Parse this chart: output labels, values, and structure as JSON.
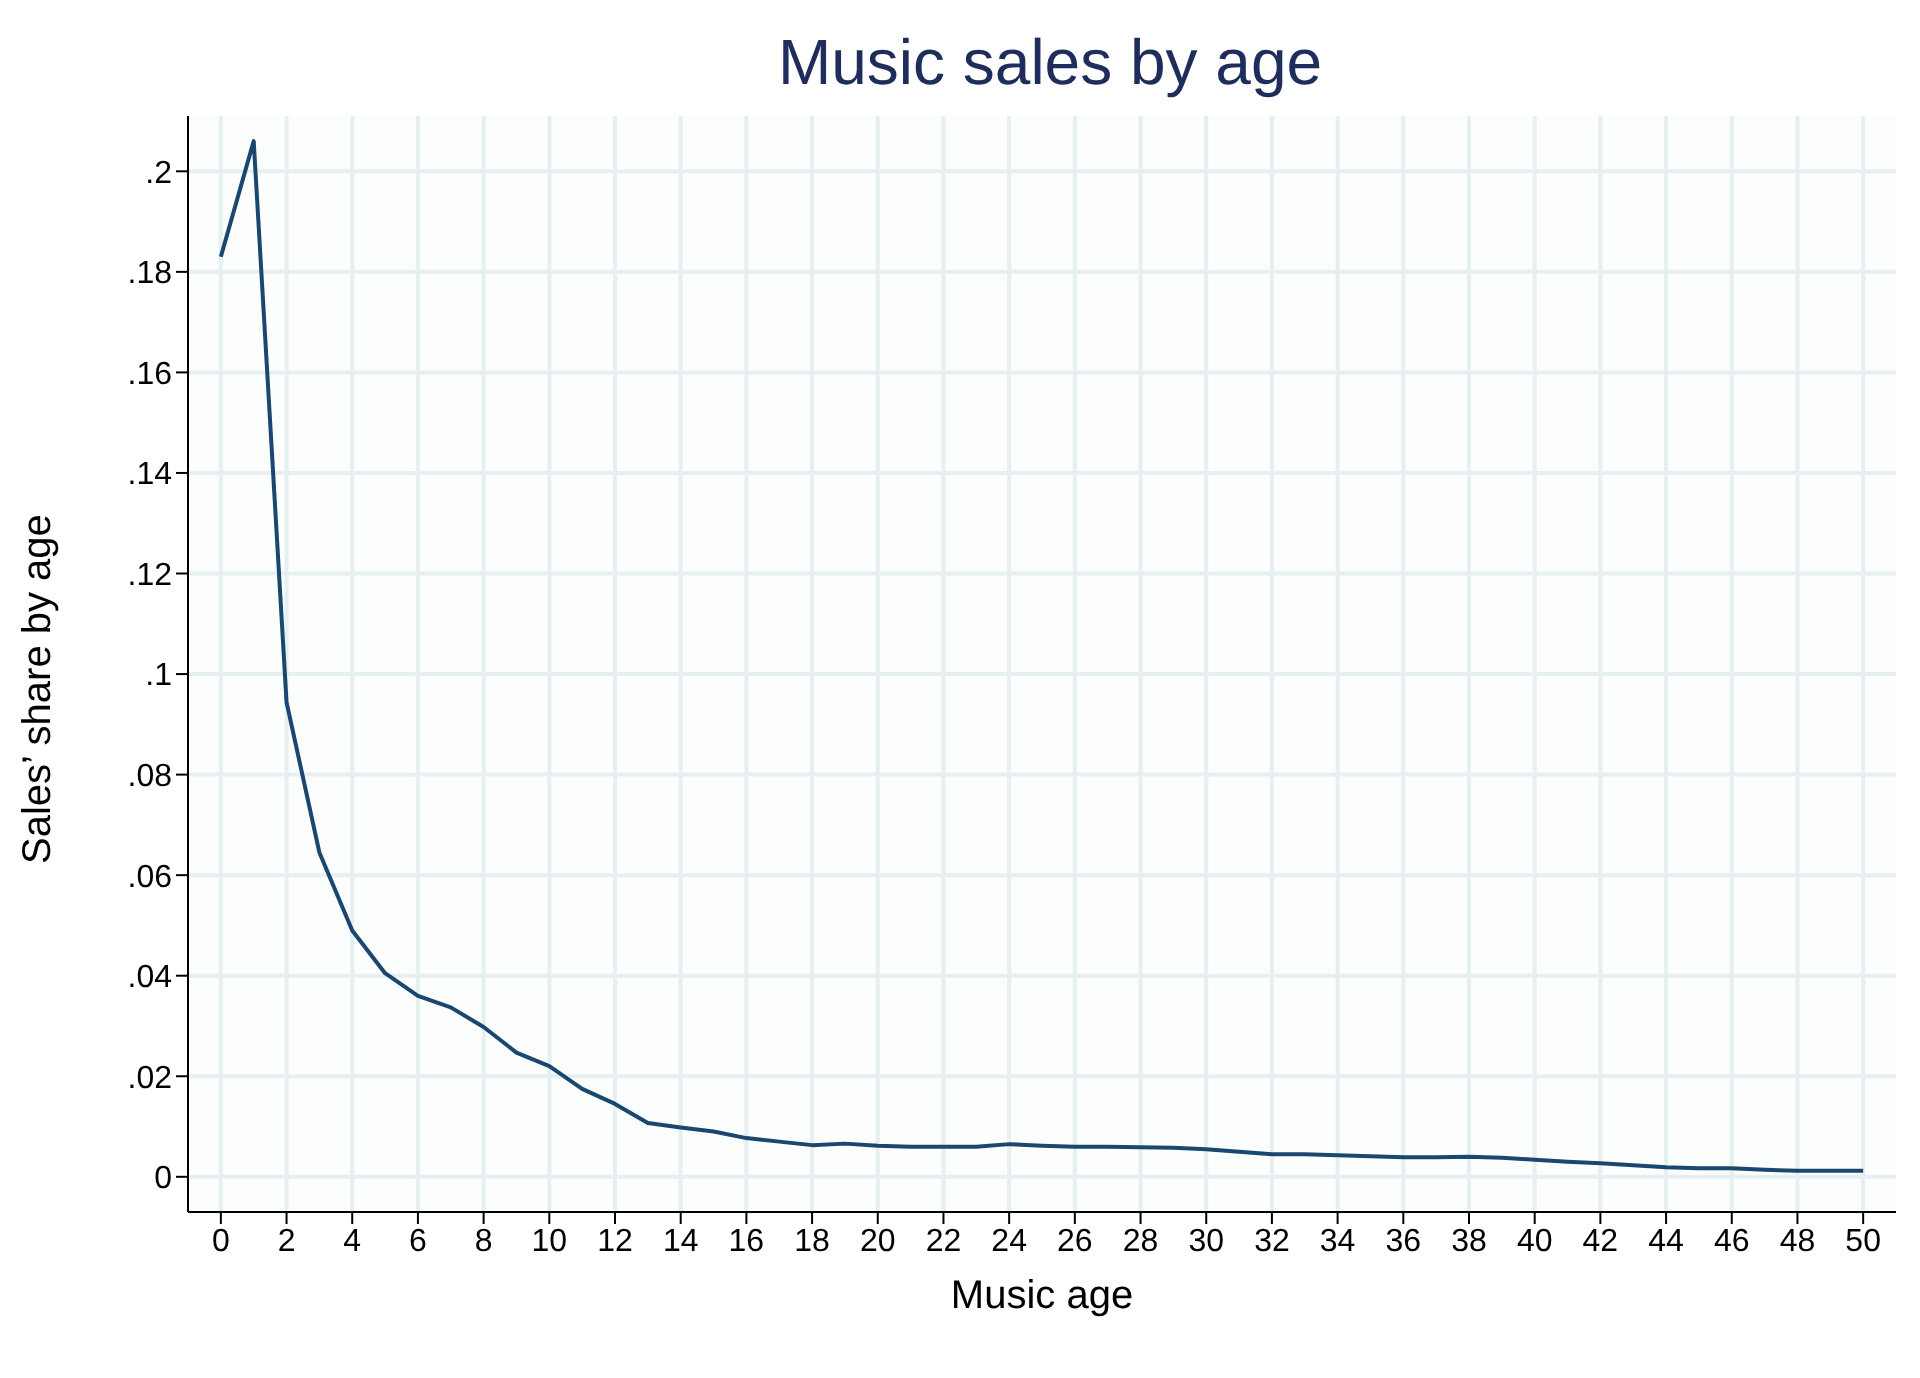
{
  "chart_data": {
    "type": "line",
    "title": "Music sales by age",
    "xlabel": "Music age",
    "ylabel": "Sales’ share by age",
    "x": [
      0,
      1,
      2,
      3,
      4,
      5,
      6,
      7,
      8,
      9,
      10,
      11,
      12,
      13,
      14,
      15,
      16,
      17,
      18,
      19,
      20,
      21,
      22,
      23,
      24,
      25,
      26,
      27,
      28,
      29,
      30,
      31,
      32,
      33,
      34,
      35,
      36,
      37,
      38,
      39,
      40,
      41,
      42,
      43,
      44,
      45,
      46,
      47,
      48,
      49,
      50
    ],
    "series": [
      {
        "color": "#1a476f",
        "values": [
          0.183,
          0.206,
          0.0944,
          0.0645,
          0.049,
          0.0405,
          0.036,
          0.0337,
          0.0298,
          0.0247,
          0.022,
          0.0175,
          0.0145,
          0.0107,
          0.0098,
          0.009,
          0.0077,
          0.007,
          0.0063,
          0.0066,
          0.0062,
          0.006,
          0.006,
          0.006,
          0.0065,
          0.0062,
          0.006,
          0.006,
          0.0059,
          0.0058,
          0.0055,
          0.005,
          0.0045,
          0.0045,
          0.0043,
          0.0041,
          0.0039,
          0.0039,
          0.004,
          0.0038,
          0.0034,
          0.003,
          0.0027,
          0.0023,
          0.0019,
          0.0017,
          0.0017,
          0.0014,
          0.0012,
          0.0012,
          0.0012
        ]
      }
    ],
    "xlim": [
      -1,
      51
    ],
    "xticks": [
      0,
      2,
      4,
      6,
      8,
      10,
      12,
      14,
      16,
      18,
      20,
      22,
      24,
      26,
      28,
      30,
      32,
      34,
      36,
      38,
      40,
      42,
      44,
      46,
      48,
      50
    ],
    "ylim": [
      -0.007,
      0.211
    ],
    "yticks": [
      {
        "value": 0,
        "label": "0"
      },
      {
        "value": 0.02,
        "label": ".02"
      },
      {
        "value": 0.04,
        "label": ".04"
      },
      {
        "value": 0.06,
        "label": ".06"
      },
      {
        "value": 0.08,
        "label": ".08"
      },
      {
        "value": 0.1,
        "label": ".1"
      },
      {
        "value": 0.12,
        "label": ".12"
      },
      {
        "value": 0.14,
        "label": ".14"
      },
      {
        "value": 0.16,
        "label": ".16"
      },
      {
        "value": 0.18,
        "label": ".18"
      },
      {
        "value": 0.2,
        "label": ".2"
      }
    ],
    "grid": true,
    "legend": false,
    "marker": "none",
    "line_style": "solid"
  }
}
